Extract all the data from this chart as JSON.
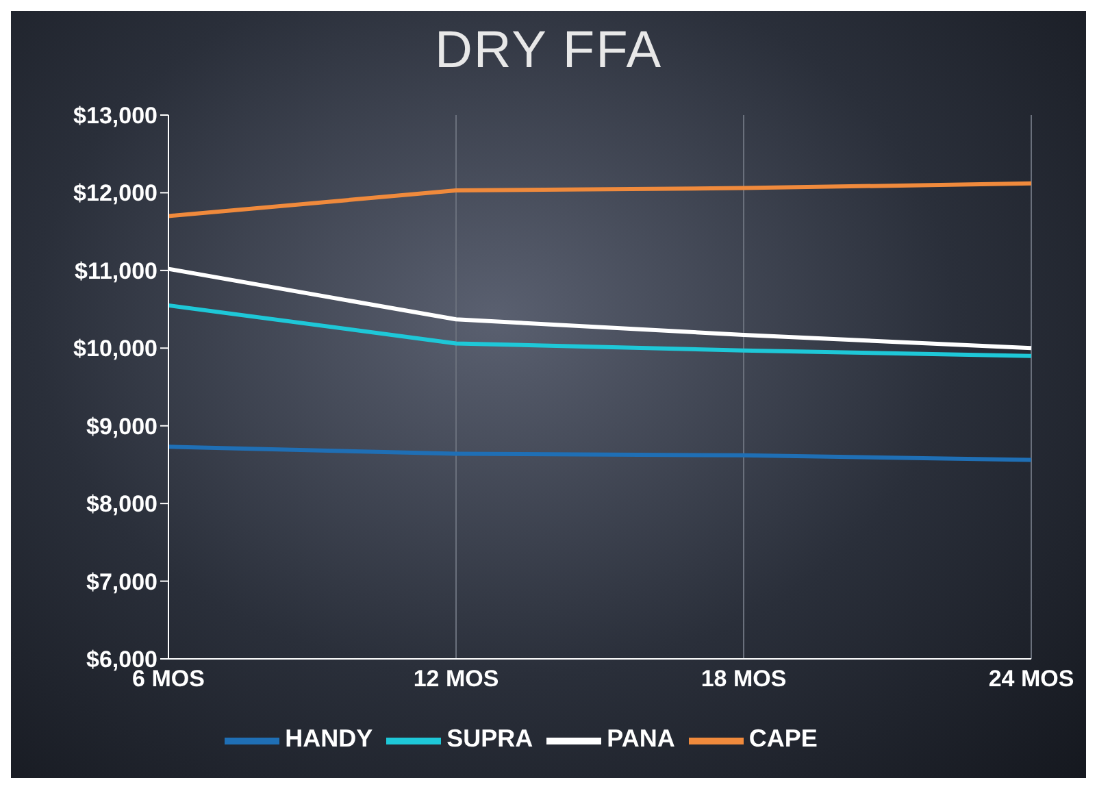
{
  "chart_data": {
    "type": "line",
    "title": "DRY FFA",
    "categories": [
      "6 MOS",
      "12 MOS",
      "18 MOS",
      "24 MOS"
    ],
    "series": [
      {
        "name": "HANDY",
        "color": "#1f6fb5",
        "values": [
          8730,
          8640,
          8620,
          8560
        ]
      },
      {
        "name": "SUPRA",
        "color": "#1ec8d8",
        "values": [
          10550,
          10060,
          9970,
          9900
        ]
      },
      {
        "name": "PANA",
        "color": "#ffffff",
        "values": [
          11020,
          10370,
          10170,
          10000
        ]
      },
      {
        "name": "CAPE",
        "color": "#f08a3c",
        "values": [
          11700,
          12030,
          12060,
          12120
        ]
      }
    ],
    "ylim": [
      6000,
      13000
    ],
    "yticks": [
      {
        "value": 6000,
        "label": "$6,000"
      },
      {
        "value": 7000,
        "label": "$7,000"
      },
      {
        "value": 8000,
        "label": "$8,000"
      },
      {
        "value": 9000,
        "label": "$9,000"
      },
      {
        "value": 10000,
        "label": "$10,000"
      },
      {
        "value": 11000,
        "label": "$11,000"
      },
      {
        "value": 12000,
        "label": "$12,000"
      },
      {
        "value": 13000,
        "label": "$13,000"
      }
    ],
    "grid": "x",
    "legend": "bottom",
    "marker": "none",
    "line_style": "solid"
  }
}
